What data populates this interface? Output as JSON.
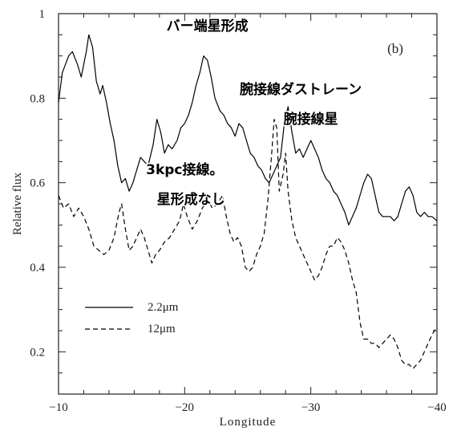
{
  "chart_data": {
    "type": "line",
    "panel_label": "(b)",
    "xlabel": "Longitude",
    "ylabel": "Relative flux",
    "xlim": [
      -10,
      -40
    ],
    "ylim": [
      0.1,
      1.0
    ],
    "x_ticks": [
      -10,
      -20,
      -30,
      -40
    ],
    "x_tick_labels": [
      "−10",
      "−20",
      "−30",
      "−40"
    ],
    "y_ticks": [
      0.2,
      0.4,
      0.6,
      0.8,
      1.0
    ],
    "y_tick_labels": [
      "0.2",
      "0.4",
      "0.6",
      "0.8",
      "1"
    ],
    "grid": false,
    "legend_position": "lower-left",
    "series": [
      {
        "name": "2.2μm",
        "style": "solid",
        "color": "#000000",
        "points": [
          [
            -10.0,
            0.79
          ],
          [
            -10.3,
            0.86
          ],
          [
            -10.8,
            0.9
          ],
          [
            -11.1,
            0.91
          ],
          [
            -11.5,
            0.88
          ],
          [
            -11.8,
            0.85
          ],
          [
            -12.2,
            0.91
          ],
          [
            -12.4,
            0.95
          ],
          [
            -12.7,
            0.92
          ],
          [
            -13.0,
            0.84
          ],
          [
            -13.3,
            0.81
          ],
          [
            -13.5,
            0.83
          ],
          [
            -13.8,
            0.79
          ],
          [
            -14.1,
            0.74
          ],
          [
            -14.4,
            0.7
          ],
          [
            -14.7,
            0.64
          ],
          [
            -15.0,
            0.6
          ],
          [
            -15.3,
            0.61
          ],
          [
            -15.6,
            0.58
          ],
          [
            -15.9,
            0.6
          ],
          [
            -16.2,
            0.63
          ],
          [
            -16.5,
            0.66
          ],
          [
            -16.8,
            0.65
          ],
          [
            -17.1,
            0.64
          ],
          [
            -17.5,
            0.69
          ],
          [
            -17.8,
            0.75
          ],
          [
            -18.1,
            0.72
          ],
          [
            -18.4,
            0.67
          ],
          [
            -18.7,
            0.69
          ],
          [
            -19.0,
            0.68
          ],
          [
            -19.4,
            0.7
          ],
          [
            -19.7,
            0.73
          ],
          [
            -20.0,
            0.74
          ],
          [
            -20.3,
            0.76
          ],
          [
            -20.6,
            0.79
          ],
          [
            -20.9,
            0.83
          ],
          [
            -21.2,
            0.86
          ],
          [
            -21.5,
            0.9
          ],
          [
            -21.8,
            0.89
          ],
          [
            -22.1,
            0.85
          ],
          [
            -22.4,
            0.8
          ],
          [
            -22.8,
            0.77
          ],
          [
            -23.1,
            0.76
          ],
          [
            -23.4,
            0.74
          ],
          [
            -23.7,
            0.73
          ],
          [
            -24.0,
            0.71
          ],
          [
            -24.3,
            0.74
          ],
          [
            -24.6,
            0.73
          ],
          [
            -24.9,
            0.7
          ],
          [
            -25.2,
            0.67
          ],
          [
            -25.5,
            0.66
          ],
          [
            -25.8,
            0.64
          ],
          [
            -26.1,
            0.63
          ],
          [
            -26.4,
            0.61
          ],
          [
            -26.7,
            0.6
          ],
          [
            -27.0,
            0.62
          ],
          [
            -27.3,
            0.64
          ],
          [
            -27.6,
            0.66
          ],
          [
            -27.9,
            0.74
          ],
          [
            -28.2,
            0.78
          ],
          [
            -28.5,
            0.72
          ],
          [
            -28.8,
            0.67
          ],
          [
            -29.1,
            0.68
          ],
          [
            -29.4,
            0.66
          ],
          [
            -29.7,
            0.68
          ],
          [
            -30.0,
            0.7
          ],
          [
            -30.3,
            0.68
          ],
          [
            -30.6,
            0.66
          ],
          [
            -30.9,
            0.63
          ],
          [
            -31.2,
            0.61
          ],
          [
            -31.5,
            0.6
          ],
          [
            -31.8,
            0.58
          ],
          [
            -32.1,
            0.57
          ],
          [
            -32.4,
            0.55
          ],
          [
            -32.7,
            0.53
          ],
          [
            -33.0,
            0.5
          ],
          [
            -33.3,
            0.52
          ],
          [
            -33.6,
            0.54
          ],
          [
            -33.9,
            0.57
          ],
          [
            -34.2,
            0.6
          ],
          [
            -34.5,
            0.62
          ],
          [
            -34.8,
            0.61
          ],
          [
            -35.1,
            0.57
          ],
          [
            -35.4,
            0.53
          ],
          [
            -35.7,
            0.52
          ],
          [
            -36.0,
            0.52
          ],
          [
            -36.3,
            0.52
          ],
          [
            -36.6,
            0.51
          ],
          [
            -36.9,
            0.52
          ],
          [
            -37.2,
            0.55
          ],
          [
            -37.5,
            0.58
          ],
          [
            -37.8,
            0.59
          ],
          [
            -38.1,
            0.57
          ],
          [
            -38.4,
            0.53
          ],
          [
            -38.7,
            0.52
          ],
          [
            -39.0,
            0.53
          ],
          [
            -39.3,
            0.52
          ],
          [
            -39.6,
            0.52
          ],
          [
            -40.0,
            0.51
          ]
        ]
      },
      {
        "name": "12μm",
        "style": "dashed",
        "color": "#000000",
        "points": [
          [
            -10.0,
            0.57
          ],
          [
            -10.4,
            0.54
          ],
          [
            -10.8,
            0.55
          ],
          [
            -11.2,
            0.52
          ],
          [
            -11.6,
            0.54
          ],
          [
            -12.0,
            0.52
          ],
          [
            -12.4,
            0.49
          ],
          [
            -12.8,
            0.45
          ],
          [
            -13.2,
            0.44
          ],
          [
            -13.6,
            0.43
          ],
          [
            -14.0,
            0.44
          ],
          [
            -14.4,
            0.47
          ],
          [
            -14.8,
            0.53
          ],
          [
            -15.0,
            0.55
          ],
          [
            -15.3,
            0.49
          ],
          [
            -15.6,
            0.44
          ],
          [
            -15.9,
            0.45
          ],
          [
            -16.2,
            0.47
          ],
          [
            -16.5,
            0.49
          ],
          [
            -16.8,
            0.47
          ],
          [
            -17.1,
            0.44
          ],
          [
            -17.4,
            0.41
          ],
          [
            -17.7,
            0.43
          ],
          [
            -18.0,
            0.44
          ],
          [
            -18.4,
            0.46
          ],
          [
            -18.8,
            0.47
          ],
          [
            -19.2,
            0.49
          ],
          [
            -19.6,
            0.51
          ],
          [
            -19.9,
            0.55
          ],
          [
            -20.2,
            0.52
          ],
          [
            -20.6,
            0.49
          ],
          [
            -21.0,
            0.51
          ],
          [
            -21.4,
            0.54
          ],
          [
            -21.8,
            0.56
          ],
          [
            -22.2,
            0.54
          ],
          [
            -22.6,
            0.55
          ],
          [
            -23.0,
            0.57
          ],
          [
            -23.3,
            0.52
          ],
          [
            -23.6,
            0.48
          ],
          [
            -23.9,
            0.46
          ],
          [
            -24.2,
            0.47
          ],
          [
            -24.5,
            0.45
          ],
          [
            -24.8,
            0.4
          ],
          [
            -25.1,
            0.39
          ],
          [
            -25.4,
            0.4
          ],
          [
            -25.7,
            0.43
          ],
          [
            -26.0,
            0.45
          ],
          [
            -26.3,
            0.48
          ],
          [
            -26.6,
            0.56
          ],
          [
            -26.9,
            0.67
          ],
          [
            -27.1,
            0.75
          ],
          [
            -27.3,
            0.73
          ],
          [
            -27.5,
            0.58
          ],
          [
            -27.8,
            0.62
          ],
          [
            -28.0,
            0.67
          ],
          [
            -28.2,
            0.58
          ],
          [
            -28.5,
            0.51
          ],
          [
            -28.8,
            0.47
          ],
          [
            -29.1,
            0.45
          ],
          [
            -29.4,
            0.43
          ],
          [
            -29.7,
            0.41
          ],
          [
            -30.0,
            0.39
          ],
          [
            -30.3,
            0.37
          ],
          [
            -30.6,
            0.38
          ],
          [
            -30.9,
            0.4
          ],
          [
            -31.2,
            0.43
          ],
          [
            -31.5,
            0.45
          ],
          [
            -31.8,
            0.45
          ],
          [
            -32.1,
            0.47
          ],
          [
            -32.4,
            0.46
          ],
          [
            -32.7,
            0.44
          ],
          [
            -33.0,
            0.41
          ],
          [
            -33.3,
            0.37
          ],
          [
            -33.6,
            0.34
          ],
          [
            -33.9,
            0.27
          ],
          [
            -34.2,
            0.23
          ],
          [
            -34.5,
            0.23
          ],
          [
            -34.8,
            0.22
          ],
          [
            -35.1,
            0.22
          ],
          [
            -35.4,
            0.21
          ],
          [
            -35.7,
            0.22
          ],
          [
            -36.0,
            0.23
          ],
          [
            -36.3,
            0.24
          ],
          [
            -36.6,
            0.23
          ],
          [
            -36.9,
            0.21
          ],
          [
            -37.2,
            0.18
          ],
          [
            -37.5,
            0.17
          ],
          [
            -37.8,
            0.17
          ],
          [
            -38.1,
            0.16
          ],
          [
            -38.4,
            0.17
          ],
          [
            -38.7,
            0.18
          ],
          [
            -39.0,
            0.2
          ],
          [
            -39.3,
            0.22
          ],
          [
            -39.6,
            0.24
          ],
          [
            -40.0,
            0.26
          ]
        ]
      }
    ],
    "annotations": [
      {
        "text": "バー端星形成",
        "x": -21.8,
        "y": 0.96
      },
      {
        "text": "腕接線ダストレーン",
        "x": -29.2,
        "y": 0.81
      },
      {
        "text": "腕接線星",
        "x": -30.0,
        "y": 0.74
      },
      {
        "text": "3kpc接線。",
        "x": -20.0,
        "y": 0.62
      },
      {
        "text": "星形成なし",
        "x": -20.5,
        "y": 0.55
      }
    ]
  }
}
